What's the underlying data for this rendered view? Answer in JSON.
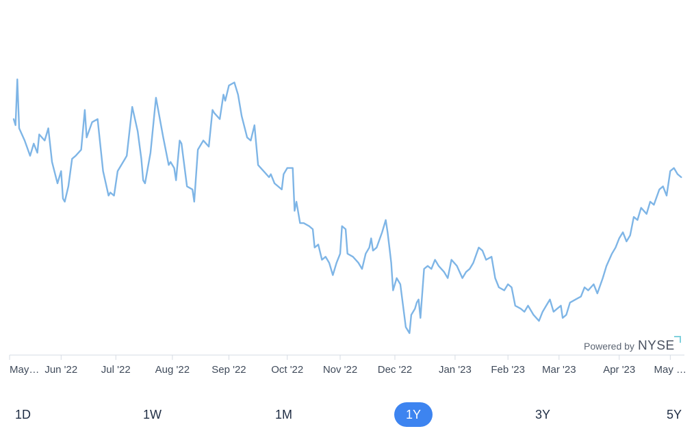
{
  "ranges": {
    "items": [
      "1D",
      "1W",
      "1M",
      "1Y",
      "3Y",
      "5Y"
    ],
    "selected": "1Y"
  },
  "attribution": {
    "prefix": "Powered by",
    "brand": "NYSE"
  },
  "colors": {
    "line": "#7eb5e6",
    "axis": "#d5dbe3",
    "active_button": "#3d84f0"
  },
  "chart_data": {
    "type": "line",
    "title": "",
    "xlabel": "",
    "ylabel": "",
    "x_range": [
      "2022-05-06",
      "2023-05-08"
    ],
    "y_axis_labels": "none",
    "grid": false,
    "x_ticks": [
      {
        "date": "2022-05-06",
        "label": "May…"
      },
      {
        "date": "2022-06-01",
        "label": "Jun '22"
      },
      {
        "date": "2022-07-01",
        "label": "Jul '22"
      },
      {
        "date": "2022-08-01",
        "label": "Aug '22"
      },
      {
        "date": "2022-09-01",
        "label": "Sep '22"
      },
      {
        "date": "2022-10-03",
        "label": "Oct '22"
      },
      {
        "date": "2022-11-01",
        "label": "Nov '22"
      },
      {
        "date": "2022-12-01",
        "label": "Dec '22"
      },
      {
        "date": "2023-01-03",
        "label": "Jan '23"
      },
      {
        "date": "2023-02-01",
        "label": "Feb '23"
      },
      {
        "date": "2023-03-01",
        "label": "Mar '23"
      },
      {
        "date": "2023-04-03",
        "label": "Apr '23"
      },
      {
        "date": "2023-05-01",
        "label": "May …"
      }
    ],
    "series": [
      {
        "values": [
          [
            "2022-05-06",
            72
          ],
          [
            "2022-05-07",
            70
          ],
          [
            "2022-05-08",
            85
          ],
          [
            "2022-05-09",
            69
          ],
          [
            "2022-05-12",
            65
          ],
          [
            "2022-05-15",
            60
          ],
          [
            "2022-05-17",
            64
          ],
          [
            "2022-05-19",
            61
          ],
          [
            "2022-05-20",
            67
          ],
          [
            "2022-05-23",
            65
          ],
          [
            "2022-05-25",
            69
          ],
          [
            "2022-05-27",
            58
          ],
          [
            "2022-05-30",
            51
          ],
          [
            "2022-06-01",
            55
          ],
          [
            "2022-06-02",
            46
          ],
          [
            "2022-06-03",
            45
          ],
          [
            "2022-06-05",
            50
          ],
          [
            "2022-06-07",
            59
          ],
          [
            "2022-06-09",
            60
          ],
          [
            "2022-06-12",
            62
          ],
          [
            "2022-06-14",
            75
          ],
          [
            "2022-06-15",
            66
          ],
          [
            "2022-06-18",
            71
          ],
          [
            "2022-06-21",
            72
          ],
          [
            "2022-06-24",
            55
          ],
          [
            "2022-06-27",
            47
          ],
          [
            "2022-06-28",
            48
          ],
          [
            "2022-06-30",
            47
          ],
          [
            "2022-07-02",
            55
          ],
          [
            "2022-07-06",
            59
          ],
          [
            "2022-07-07",
            60
          ],
          [
            "2022-07-10",
            76
          ],
          [
            "2022-07-13",
            68
          ],
          [
            "2022-07-15",
            59
          ],
          [
            "2022-07-16",
            52
          ],
          [
            "2022-07-17",
            51
          ],
          [
            "2022-07-20",
            61
          ],
          [
            "2022-07-23",
            79
          ],
          [
            "2022-07-27",
            66
          ],
          [
            "2022-07-30",
            57
          ],
          [
            "2022-07-31",
            58
          ],
          [
            "2022-08-02",
            56
          ],
          [
            "2022-08-03",
            52
          ],
          [
            "2022-08-05",
            65
          ],
          [
            "2022-08-06",
            64
          ],
          [
            "2022-08-09",
            50
          ],
          [
            "2022-08-12",
            49
          ],
          [
            "2022-08-13",
            45
          ],
          [
            "2022-08-15",
            62
          ],
          [
            "2022-08-18",
            65
          ],
          [
            "2022-08-21",
            63
          ],
          [
            "2022-08-23",
            75
          ],
          [
            "2022-08-24",
            74
          ],
          [
            "2022-08-27",
            72
          ],
          [
            "2022-08-29",
            80
          ],
          [
            "2022-08-30",
            78
          ],
          [
            "2022-09-01",
            83
          ],
          [
            "2022-09-04",
            84
          ],
          [
            "2022-09-06",
            80
          ],
          [
            "2022-09-08",
            73
          ],
          [
            "2022-09-11",
            66
          ],
          [
            "2022-09-13",
            65
          ],
          [
            "2022-09-15",
            70
          ],
          [
            "2022-09-17",
            57
          ],
          [
            "2022-09-20",
            55
          ],
          [
            "2022-09-23",
            53
          ],
          [
            "2022-09-24",
            54
          ],
          [
            "2022-09-26",
            51
          ],
          [
            "2022-09-30",
            49
          ],
          [
            "2022-10-01",
            54
          ],
          [
            "2022-10-03",
            56
          ],
          [
            "2022-10-06",
            56
          ],
          [
            "2022-10-07",
            42
          ],
          [
            "2022-10-08",
            45
          ],
          [
            "2022-10-10",
            38
          ],
          [
            "2022-10-12",
            38
          ],
          [
            "2022-10-15",
            37
          ],
          [
            "2022-10-17",
            36
          ],
          [
            "2022-10-18",
            30
          ],
          [
            "2022-10-20",
            31
          ],
          [
            "2022-10-22",
            26
          ],
          [
            "2022-10-24",
            27
          ],
          [
            "2022-10-26",
            25
          ],
          [
            "2022-10-28",
            21
          ],
          [
            "2022-10-30",
            25
          ],
          [
            "2022-11-01",
            28
          ],
          [
            "2022-11-02",
            37
          ],
          [
            "2022-11-04",
            36
          ],
          [
            "2022-11-05",
            28
          ],
          [
            "2022-11-08",
            27
          ],
          [
            "2022-11-11",
            25
          ],
          [
            "2022-11-13",
            23
          ],
          [
            "2022-11-15",
            28
          ],
          [
            "2022-11-17",
            30
          ],
          [
            "2022-11-18",
            33
          ],
          [
            "2022-11-19",
            29
          ],
          [
            "2022-11-21",
            30
          ],
          [
            "2022-11-24",
            35
          ],
          [
            "2022-11-26",
            39
          ],
          [
            "2022-11-27",
            35
          ],
          [
            "2022-11-28",
            30
          ],
          [
            "2022-11-29",
            25
          ],
          [
            "2022-11-30",
            16
          ],
          [
            "2022-12-02",
            20
          ],
          [
            "2022-12-04",
            18
          ],
          [
            "2022-12-07",
            4
          ],
          [
            "2022-12-09",
            2
          ],
          [
            "2022-12-10",
            8
          ],
          [
            "2022-12-12",
            10
          ],
          [
            "2022-12-13",
            12
          ],
          [
            "2022-12-14",
            13
          ],
          [
            "2022-12-15",
            7
          ],
          [
            "2022-12-17",
            23
          ],
          [
            "2022-12-19",
            24
          ],
          [
            "2022-12-21",
            23
          ],
          [
            "2022-12-23",
            26
          ],
          [
            "2022-12-25",
            24
          ],
          [
            "2022-12-28",
            22
          ],
          [
            "2022-12-30",
            20
          ],
          [
            "2023-01-01",
            26
          ],
          [
            "2023-01-04",
            24
          ],
          [
            "2023-01-07",
            20
          ],
          [
            "2023-01-09",
            22
          ],
          [
            "2023-01-11",
            23
          ],
          [
            "2023-01-13",
            25
          ],
          [
            "2023-01-16",
            30
          ],
          [
            "2023-01-18",
            29
          ],
          [
            "2023-01-20",
            26
          ],
          [
            "2023-01-23",
            27
          ],
          [
            "2023-01-25",
            20
          ],
          [
            "2023-01-27",
            17
          ],
          [
            "2023-01-30",
            16
          ],
          [
            "2023-02-01",
            18
          ],
          [
            "2023-02-03",
            17
          ],
          [
            "2023-02-05",
            11
          ],
          [
            "2023-02-08",
            10
          ],
          [
            "2023-02-10",
            9
          ],
          [
            "2023-02-12",
            11
          ],
          [
            "2023-02-15",
            8
          ],
          [
            "2023-02-18",
            6
          ],
          [
            "2023-02-20",
            9
          ],
          [
            "2023-02-22",
            11
          ],
          [
            "2023-02-24",
            13
          ],
          [
            "2023-02-26",
            9
          ],
          [
            "2023-02-28",
            10
          ],
          [
            "2023-03-02",
            11
          ],
          [
            "2023-03-03",
            7
          ],
          [
            "2023-03-05",
            8
          ],
          [
            "2023-03-07",
            12
          ],
          [
            "2023-03-10",
            13
          ],
          [
            "2023-03-13",
            14
          ],
          [
            "2023-03-15",
            17
          ],
          [
            "2023-03-17",
            16
          ],
          [
            "2023-03-20",
            18
          ],
          [
            "2023-03-22",
            15
          ],
          [
            "2023-03-25",
            20
          ],
          [
            "2023-03-27",
            24
          ],
          [
            "2023-03-30",
            28
          ],
          [
            "2023-04-01",
            30
          ],
          [
            "2023-04-03",
            33
          ],
          [
            "2023-04-05",
            35
          ],
          [
            "2023-04-07",
            32
          ],
          [
            "2023-04-09",
            34
          ],
          [
            "2023-04-11",
            40
          ],
          [
            "2023-04-13",
            39
          ],
          [
            "2023-04-15",
            43
          ],
          [
            "2023-04-18",
            41
          ],
          [
            "2023-04-20",
            45
          ],
          [
            "2023-04-22",
            44
          ],
          [
            "2023-04-25",
            49
          ],
          [
            "2023-04-27",
            50
          ],
          [
            "2023-04-29",
            47
          ],
          [
            "2023-05-01",
            55
          ],
          [
            "2023-05-03",
            56
          ],
          [
            "2023-05-05",
            54
          ],
          [
            "2023-05-07",
            53
          ]
        ]
      }
    ]
  }
}
